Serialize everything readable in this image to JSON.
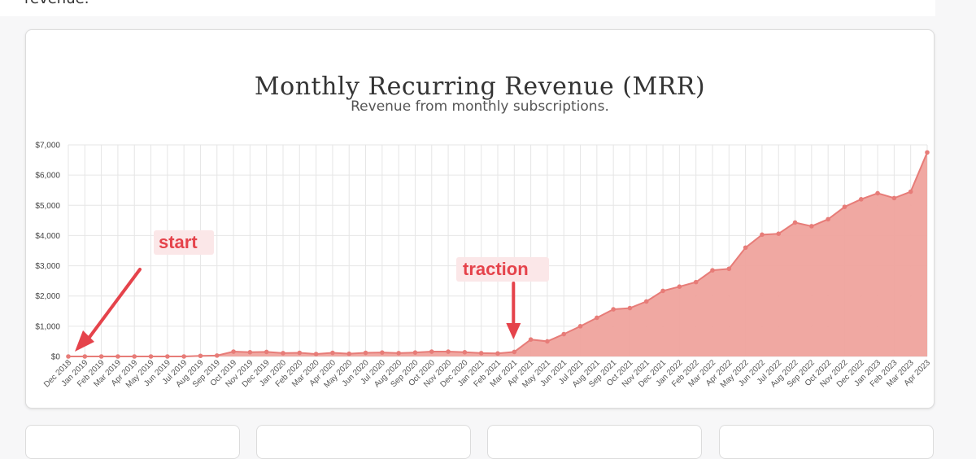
{
  "header": {
    "fragment_text": "revenue."
  },
  "colors": {
    "area_fill": "#efa39d",
    "line": "#e77c78",
    "point": "#e77c78",
    "annotation": "#e5434b",
    "annotation_bg": "#fbe7e8",
    "grid": "#e6e6e6"
  },
  "chart_data": {
    "type": "area",
    "title": "Monthly Recurring Revenue (MRR)",
    "subtitle": "Revenue from monthly subscriptions.",
    "ylim": [
      0,
      7000
    ],
    "yticks": [
      "$0",
      "$1,000",
      "$2,000",
      "$3,000",
      "$4,000",
      "$5,000",
      "$6,000",
      "$7,000"
    ],
    "categories": [
      "Dec 2018",
      "Jan 2019",
      "Feb 2019",
      "Mar 2019",
      "Apr 2019",
      "May 2019",
      "Jun 2019",
      "Jul 2019",
      "Aug 2019",
      "Sep 2019",
      "Oct 2019",
      "Nov 2019",
      "Dec 2019",
      "Jan 2020",
      "Feb 2020",
      "Mar 2020",
      "Apr 2020",
      "May 2020",
      "Jun 2020",
      "Jul 2020",
      "Aug 2020",
      "Sep 2020",
      "Oct 2020",
      "Nov 2020",
      "Dec 2020",
      "Jan 2021",
      "Feb 2021",
      "Mar 2021",
      "Apr 2021",
      "May 2021",
      "Jun 2021",
      "Jul 2021",
      "Aug 2021",
      "Sep 2021",
      "Oct 2021",
      "Nov 2021",
      "Dec 2021",
      "Jan 2022",
      "Feb 2022",
      "Mar 2022",
      "Apr 2022",
      "May 2022",
      "Jun 2022",
      "Jul 2022",
      "Aug 2022",
      "Sep 2022",
      "Oct 2022",
      "Nov 2022",
      "Dec 2022",
      "Jan 2023",
      "Feb 2023",
      "Mar 2023",
      "Apr 2023"
    ],
    "values": [
      0,
      0,
      0,
      0,
      0,
      0,
      0,
      0,
      20,
      30,
      160,
      140,
      150,
      110,
      120,
      80,
      120,
      90,
      120,
      130,
      110,
      130,
      160,
      160,
      140,
      110,
      100,
      150,
      560,
      500,
      740,
      1000,
      1280,
      1560,
      1600,
      1820,
      2170,
      2310,
      2460,
      2850,
      2900,
      3600,
      4030,
      4060,
      4430,
      4310,
      4540,
      4950,
      5200,
      5400,
      5240,
      5450,
      6750
    ],
    "grid": true,
    "annotations": [
      {
        "text": "start",
        "category": "Dec 2018"
      },
      {
        "text": "traction",
        "category": "Mar 2021"
      }
    ]
  }
}
